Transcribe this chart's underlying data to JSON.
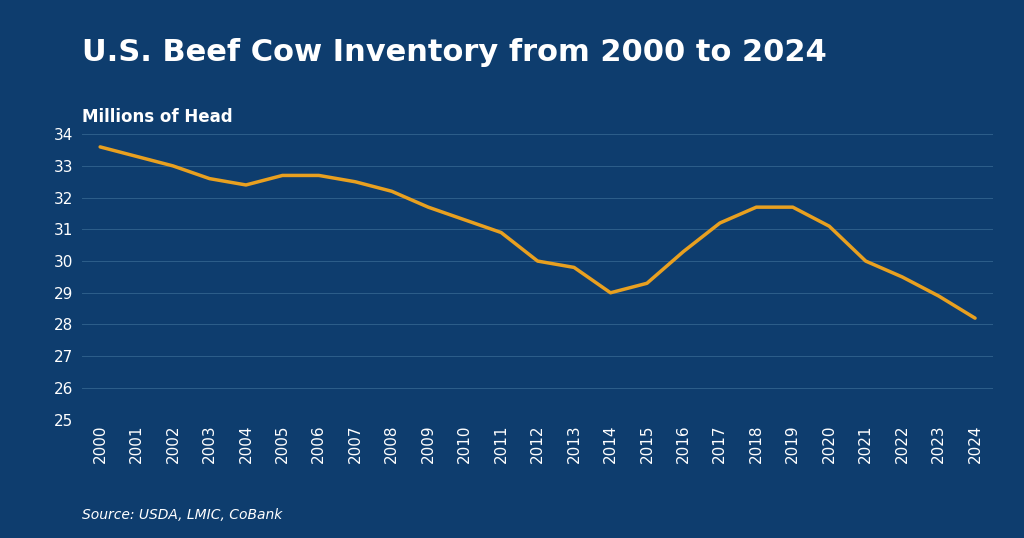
{
  "title": "U.S. Beef Cow Inventory from 2000 to 2024",
  "ylabel": "Millions of Head",
  "source": "Source: USDA, LMIC, CoBank",
  "background_color": "#0e3d6e",
  "line_color": "#e8a020",
  "grid_color": "#2d5f8a",
  "text_color": "#ffffff",
  "years": [
    2000,
    2001,
    2002,
    2003,
    2004,
    2005,
    2006,
    2007,
    2008,
    2009,
    2010,
    2011,
    2012,
    2013,
    2014,
    2015,
    2016,
    2017,
    2018,
    2019,
    2020,
    2021,
    2022,
    2023,
    2024
  ],
  "values": [
    33.6,
    33.3,
    33.0,
    32.6,
    32.4,
    32.7,
    32.7,
    32.5,
    32.2,
    31.7,
    31.3,
    30.9,
    30.0,
    29.8,
    29.0,
    29.3,
    30.3,
    31.2,
    31.7,
    31.7,
    31.1,
    30.0,
    29.5,
    28.9,
    28.2
  ],
  "ylim": [
    25,
    34.5
  ],
  "yticks": [
    25,
    26,
    27,
    28,
    29,
    30,
    31,
    32,
    33,
    34
  ],
  "line_width": 2.5,
  "title_fontsize": 22,
  "ylabel_fontsize": 12,
  "tick_fontsize": 11,
  "source_fontsize": 10
}
